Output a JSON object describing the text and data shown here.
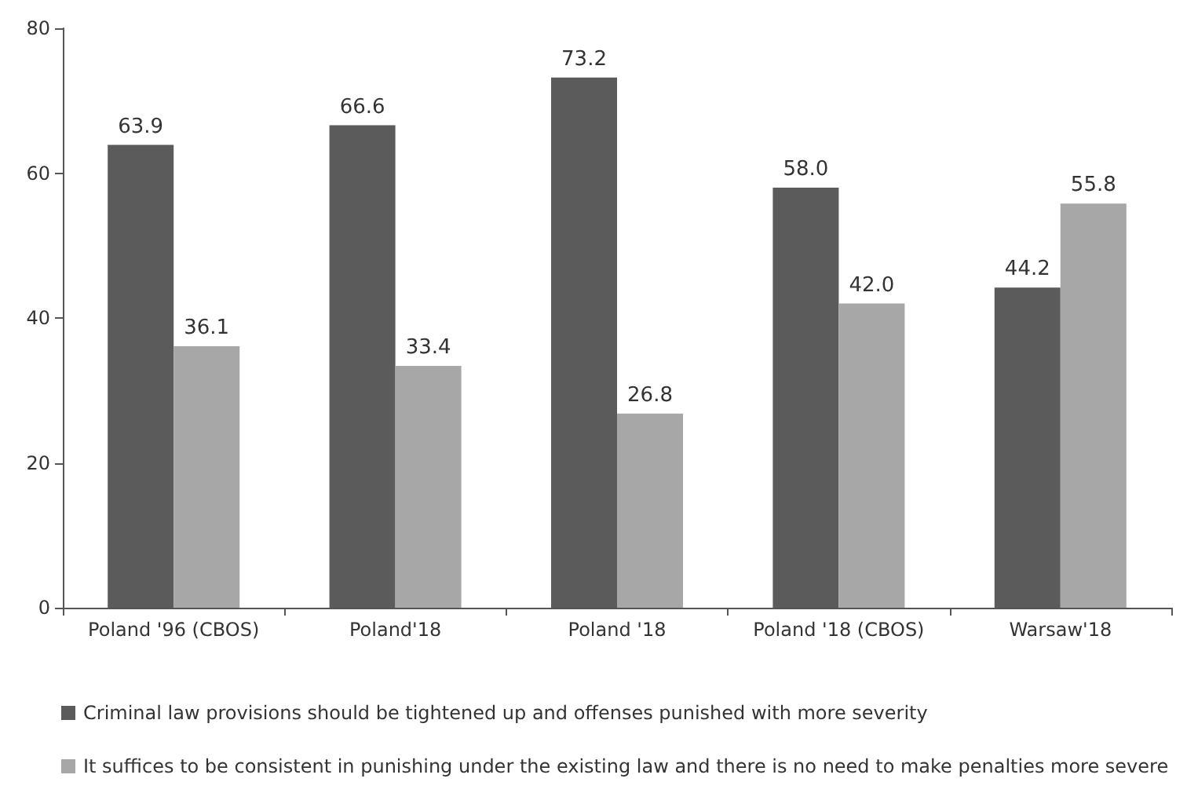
{
  "chart_data": {
    "type": "bar",
    "categories": [
      "Poland '96 (CBOS)",
      "Poland'18",
      "Poland '18",
      "Poland '18 (CBOS)",
      "Warsaw'18"
    ],
    "series": [
      {
        "name": "Criminal law provisions should be tightened up and offenses punished with more severity",
        "color": "#5b5b5b",
        "values": [
          63.9,
          66.6,
          73.2,
          58.0,
          44.2
        ],
        "value_labels": [
          "63.9",
          "66.6",
          "73.2",
          "58.0",
          "44.2"
        ]
      },
      {
        "name": "It suffices to be consistent in punishing under the existing law and there is no need to make penalties more severe",
        "color": "#a7a7a7",
        "values": [
          36.1,
          33.4,
          26.8,
          42.0,
          55.8
        ],
        "value_labels": [
          "36.1",
          "33.4",
          "26.8",
          "42.0",
          "55.8"
        ]
      }
    ],
    "ylim": [
      0,
      80
    ],
    "yticks": [
      0,
      20,
      40,
      60,
      80
    ],
    "grid": false,
    "legend": "bottom"
  }
}
